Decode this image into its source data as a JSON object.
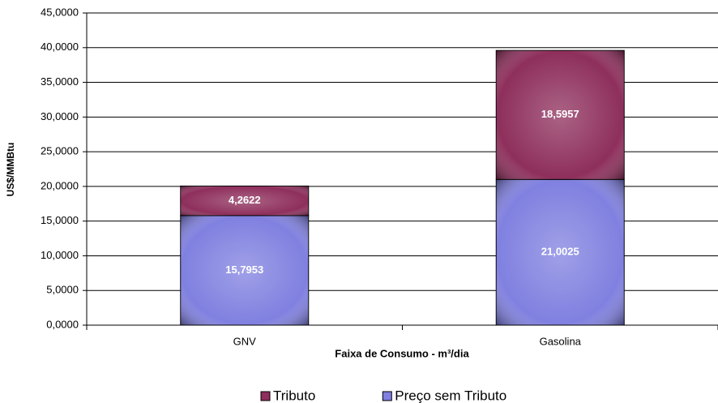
{
  "chart_data": {
    "type": "stacked-bar",
    "x_label": "Faixa de Consumo  - m³/dia",
    "y_label": "US$/MMBtu",
    "categories": [
      "GNV",
      "Gasolina"
    ],
    "series": [
      {
        "name": "Preço sem Tributo",
        "color": "#8080e0",
        "values": [
          15.7953,
          21.0025
        ],
        "value_labels": [
          "15,7953",
          "21,0025"
        ]
      },
      {
        "name": "Tributo",
        "color": "#8e2f5c",
        "values": [
          4.2622,
          18.5957
        ],
        "value_labels": [
          "4,2622",
          "18,5957"
        ]
      }
    ],
    "ylim": [
      0,
      45
    ],
    "yticks": [
      {
        "value": 0,
        "label": "0,0000"
      },
      {
        "value": 5,
        "label": "5,0000"
      },
      {
        "value": 10,
        "label": "10,0000"
      },
      {
        "value": 15,
        "label": "15,0000"
      },
      {
        "value": 20,
        "label": "20,0000"
      },
      {
        "value": 25,
        "label": "25,0000"
      },
      {
        "value": 30,
        "label": "30,0000"
      },
      {
        "value": 35,
        "label": "35,0000"
      },
      {
        "value": 40,
        "label": "40,0000"
      },
      {
        "value": 45,
        "label": "45,0000"
      }
    ],
    "grid": true,
    "legend": "bottom"
  }
}
